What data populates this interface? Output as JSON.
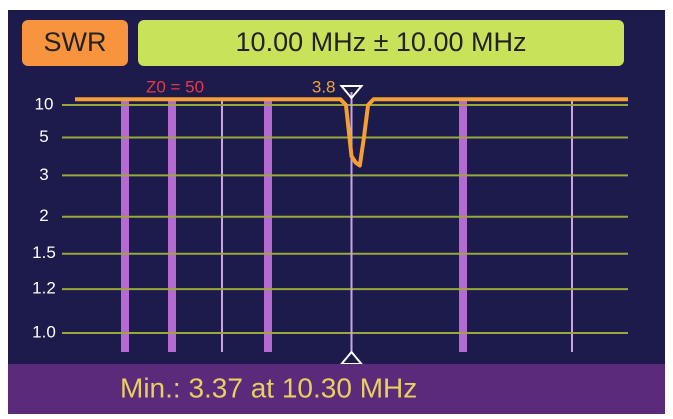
{
  "chart_data": {
    "type": "line",
    "mode": "SWR",
    "title": "10.00 MHz ± 10.00 MHz",
    "impedance_label": "Z0 = 50",
    "cursor": {
      "x": 10.0,
      "value": 3.8
    },
    "footer": "Min.: 3.37 at 10.30 MHz",
    "x": [
      0,
      9.6,
      9.8,
      10.0,
      10.15,
      10.3,
      10.45,
      10.6,
      10.8,
      20
    ],
    "series": [
      {
        "name": "SWR",
        "color": "#f5a030",
        "values": [
          12,
          12,
          10,
          3.8,
          3.5,
          3.37,
          5,
          10,
          12,
          12
        ]
      }
    ],
    "xlim": [
      0,
      20
    ],
    "ylim": [
      1,
      12
    ],
    "yticks": [
      10,
      5,
      3,
      2,
      1.5,
      1.2,
      {
        "value": 1,
        "label": "1.0"
      }
    ],
    "yscale": "swr",
    "grid": true
  }
}
